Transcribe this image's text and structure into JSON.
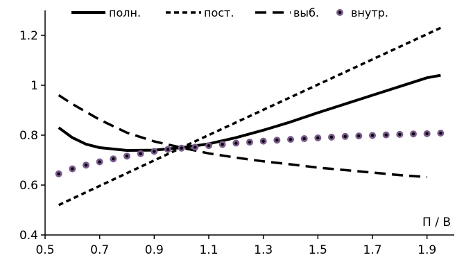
{
  "chart_data": {
    "type": "line",
    "title": "",
    "xlabel": "П / В",
    "ylabel": "",
    "xlim": [
      0.5,
      2.0
    ],
    "ylim": [
      0.4,
      1.3
    ],
    "xticks": [
      0.5,
      0.7,
      0.9,
      1.1,
      1.3,
      1.5,
      1.7,
      1.9
    ],
    "xtick_labels": [
      "0.5",
      "0.7",
      "0.9",
      "1.1",
      "1.3",
      "1.5",
      "1.7",
      "1.9"
    ],
    "yticks": [
      0.4,
      0.6,
      0.8,
      1.0,
      1.2
    ],
    "ytick_labels": [
      "0.4",
      "0.6",
      "0.8",
      "1",
      "1.2"
    ],
    "grid": false,
    "legend": "top",
    "series": [
      {
        "name": "полн.",
        "style": "solid",
        "color": "#000000",
        "x": [
          0.55,
          0.6,
          0.65,
          0.7,
          0.8,
          0.9,
          1.0,
          1.1,
          1.2,
          1.3,
          1.4,
          1.5,
          1.6,
          1.7,
          1.8,
          1.9,
          1.95
        ],
        "y": [
          0.83,
          0.79,
          0.764,
          0.75,
          0.739,
          0.74,
          0.75,
          0.765,
          0.79,
          0.82,
          0.853,
          0.89,
          0.925,
          0.96,
          0.995,
          1.03,
          1.04
        ]
      },
      {
        "name": "пост.",
        "style": "short-dash",
        "color": "#000000",
        "x": [
          0.55,
          1.0,
          1.95
        ],
        "y": [
          0.52,
          0.75,
          1.23
        ]
      },
      {
        "name": "выб.",
        "style": "long-dash",
        "color": "#000000",
        "x": [
          0.55,
          0.6,
          0.7,
          0.8,
          0.9,
          1.0,
          1.1,
          1.2,
          1.3,
          1.4,
          1.5,
          1.6,
          1.7,
          1.8,
          1.9
        ],
        "y": [
          0.96,
          0.925,
          0.862,
          0.81,
          0.775,
          0.75,
          0.727,
          0.71,
          0.695,
          0.683,
          0.67,
          0.66,
          0.65,
          0.64,
          0.632
        ]
      },
      {
        "name": "внутр.",
        "style": "markers",
        "color": "#7b5c8e",
        "x": [
          0.55,
          0.6,
          0.65,
          0.7,
          0.75,
          0.8,
          0.85,
          0.9,
          0.95,
          1.0,
          1.05,
          1.1,
          1.15,
          1.2,
          1.25,
          1.3,
          1.35,
          1.4,
          1.45,
          1.5,
          1.55,
          1.6,
          1.65,
          1.7,
          1.75,
          1.8,
          1.85,
          1.9,
          1.95
        ],
        "y": [
          0.645,
          0.665,
          0.68,
          0.693,
          0.705,
          0.716,
          0.726,
          0.735,
          0.743,
          0.748,
          0.752,
          0.758,
          0.763,
          0.768,
          0.772,
          0.776,
          0.78,
          0.783,
          0.786,
          0.789,
          0.792,
          0.795,
          0.797,
          0.799,
          0.801,
          0.803,
          0.805,
          0.806,
          0.808
        ]
      }
    ]
  }
}
